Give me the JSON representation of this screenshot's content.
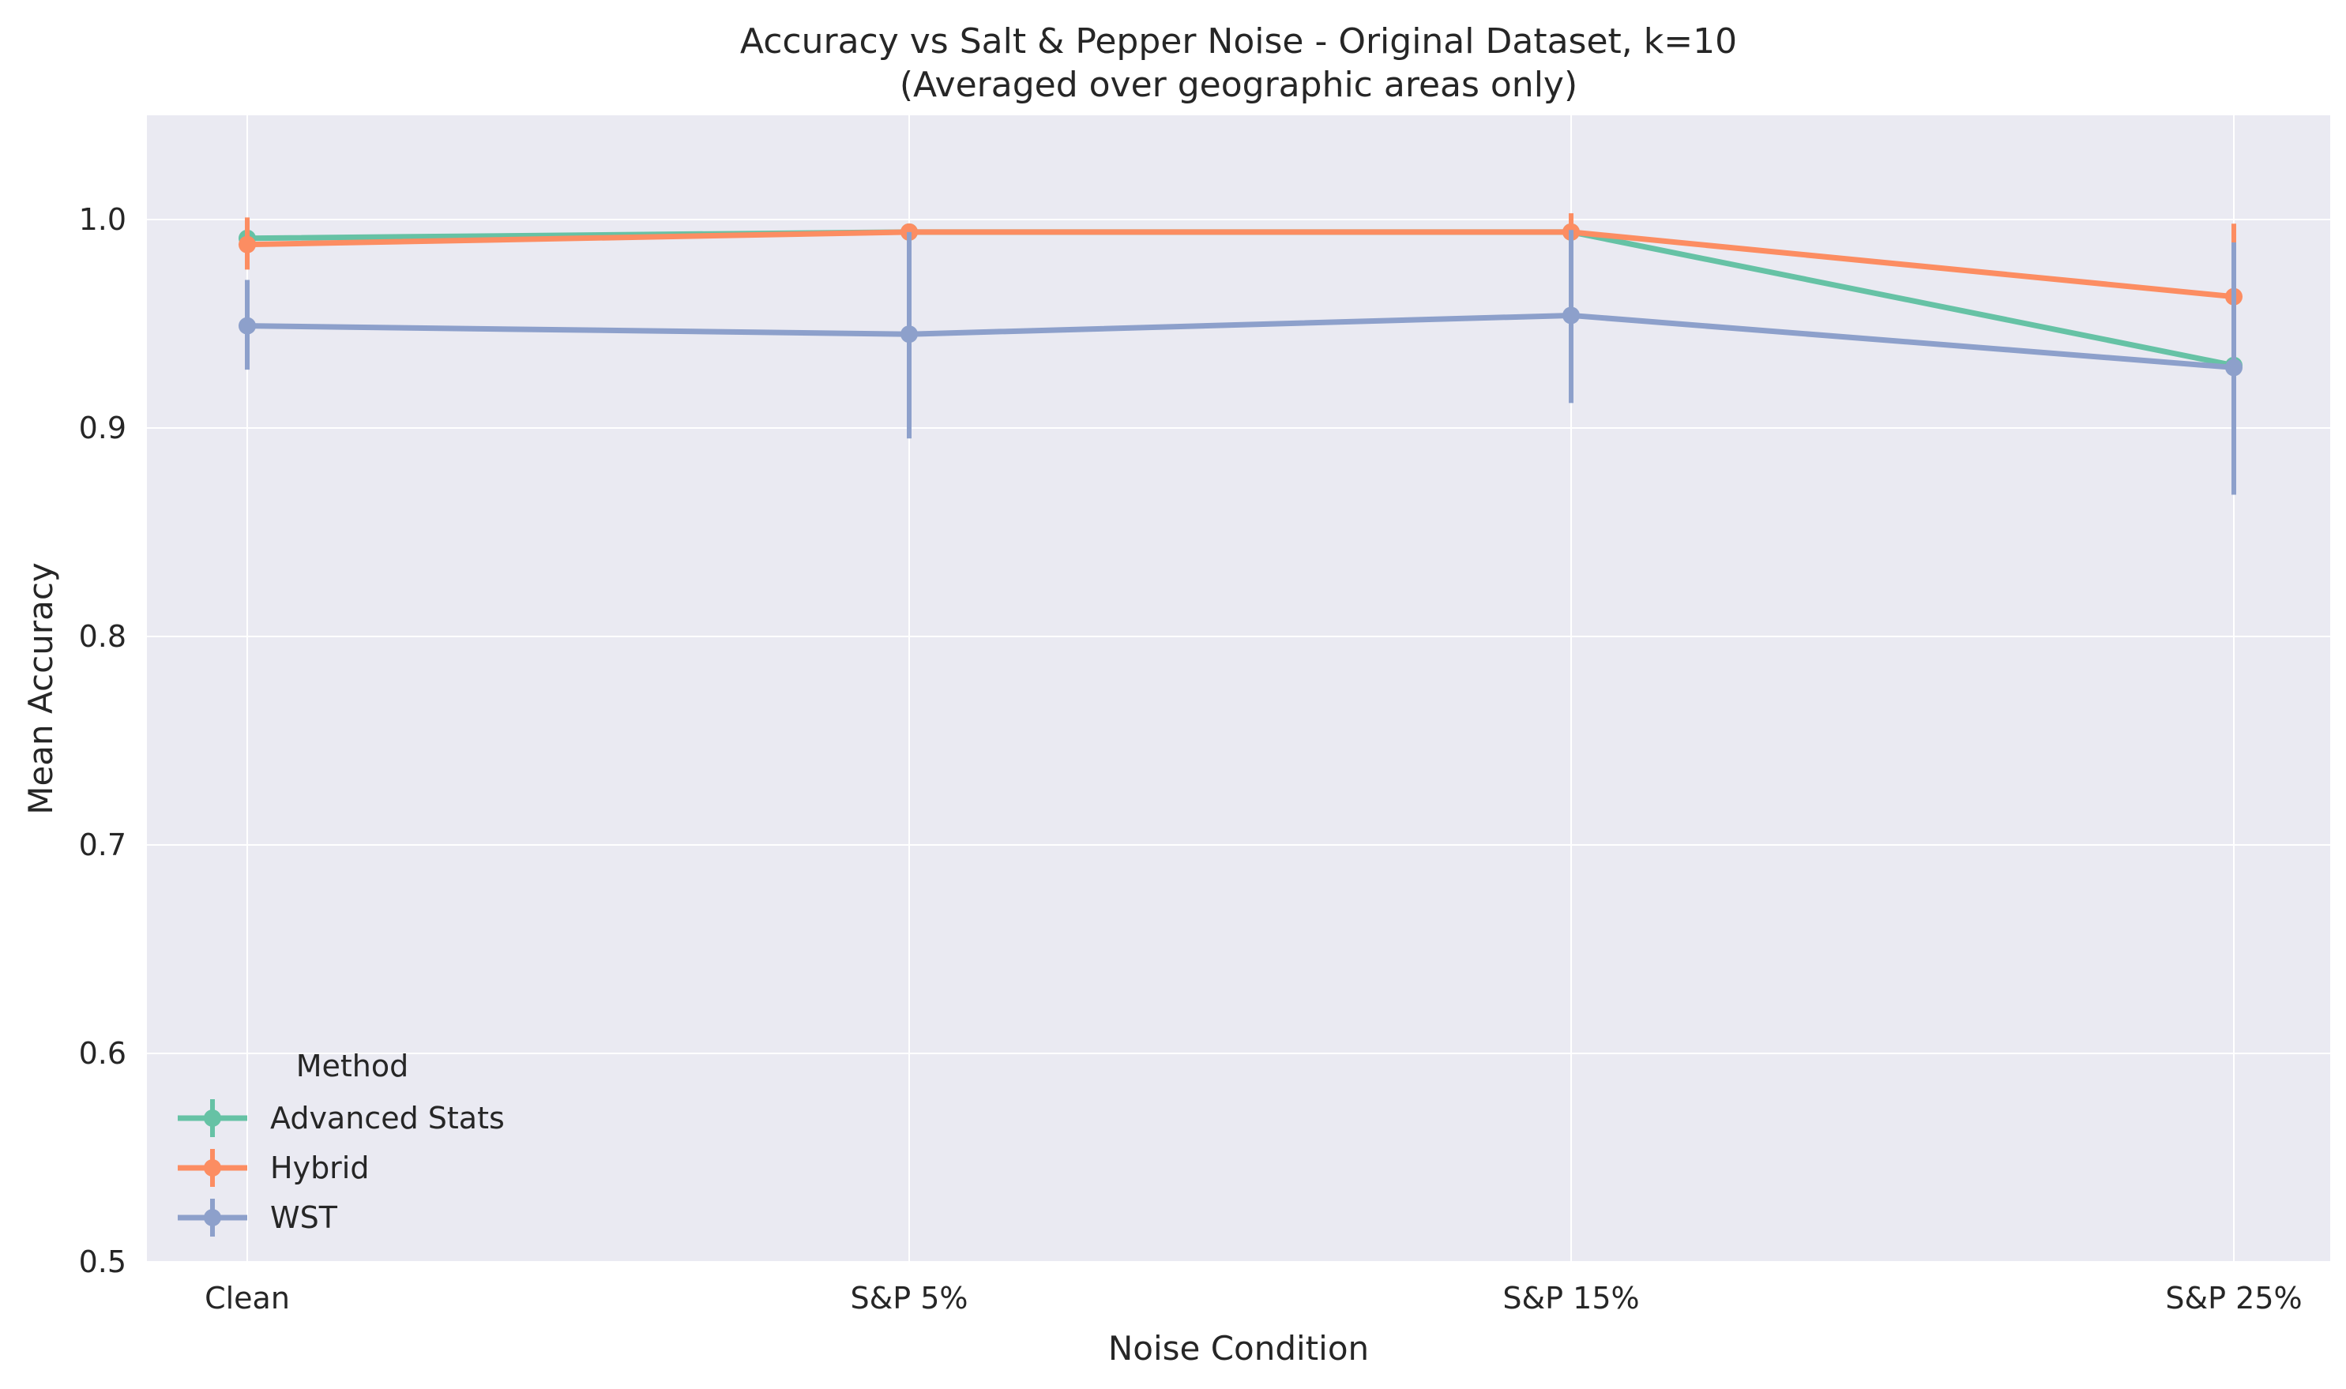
{
  "chart_data": {
    "type": "line",
    "title": "Accuracy vs Salt & Pepper Noise - Original Dataset, k=10",
    "subtitle": "(Averaged over geographic areas only)",
    "xlabel": "Noise Condition",
    "ylabel": "Mean Accuracy",
    "categories": [
      "Clean",
      "S&P 5%",
      "S&P 15%",
      "S&P 25%"
    ],
    "ylim": [
      0.5,
      1.05
    ],
    "yticks": [
      0.5,
      0.6,
      0.7,
      0.8,
      0.9,
      1.0
    ],
    "ytick_labels": [
      "0.5",
      "0.6",
      "0.7",
      "0.8",
      "0.9",
      "1.0"
    ],
    "grid": true,
    "legend": {
      "title": "Method",
      "placement": "lower-left"
    },
    "series": [
      {
        "name": "Advanced Stats",
        "color": "#66c2a5",
        "values": [
          0.991,
          0.994,
          0.994,
          0.93
        ],
        "err_low": [
          0.988,
          0.994,
          0.994,
          0.93
        ],
        "err_high": [
          0.995,
          0.994,
          0.994,
          0.93
        ]
      },
      {
        "name": "Hybrid",
        "color": "#fc8d62",
        "values": [
          0.988,
          0.994,
          0.994,
          0.963
        ],
        "err_low": [
          0.976,
          0.994,
          0.994,
          0.963
        ],
        "err_high": [
          1.001,
          0.994,
          1.003,
          0.998
        ]
      },
      {
        "name": "WST",
        "color": "#8da0cb",
        "values": [
          0.949,
          0.945,
          0.954,
          0.929
        ],
        "err_low": [
          0.928,
          0.895,
          0.912,
          0.868
        ],
        "err_high": [
          0.971,
          0.994,
          0.995,
          0.989
        ]
      }
    ]
  }
}
